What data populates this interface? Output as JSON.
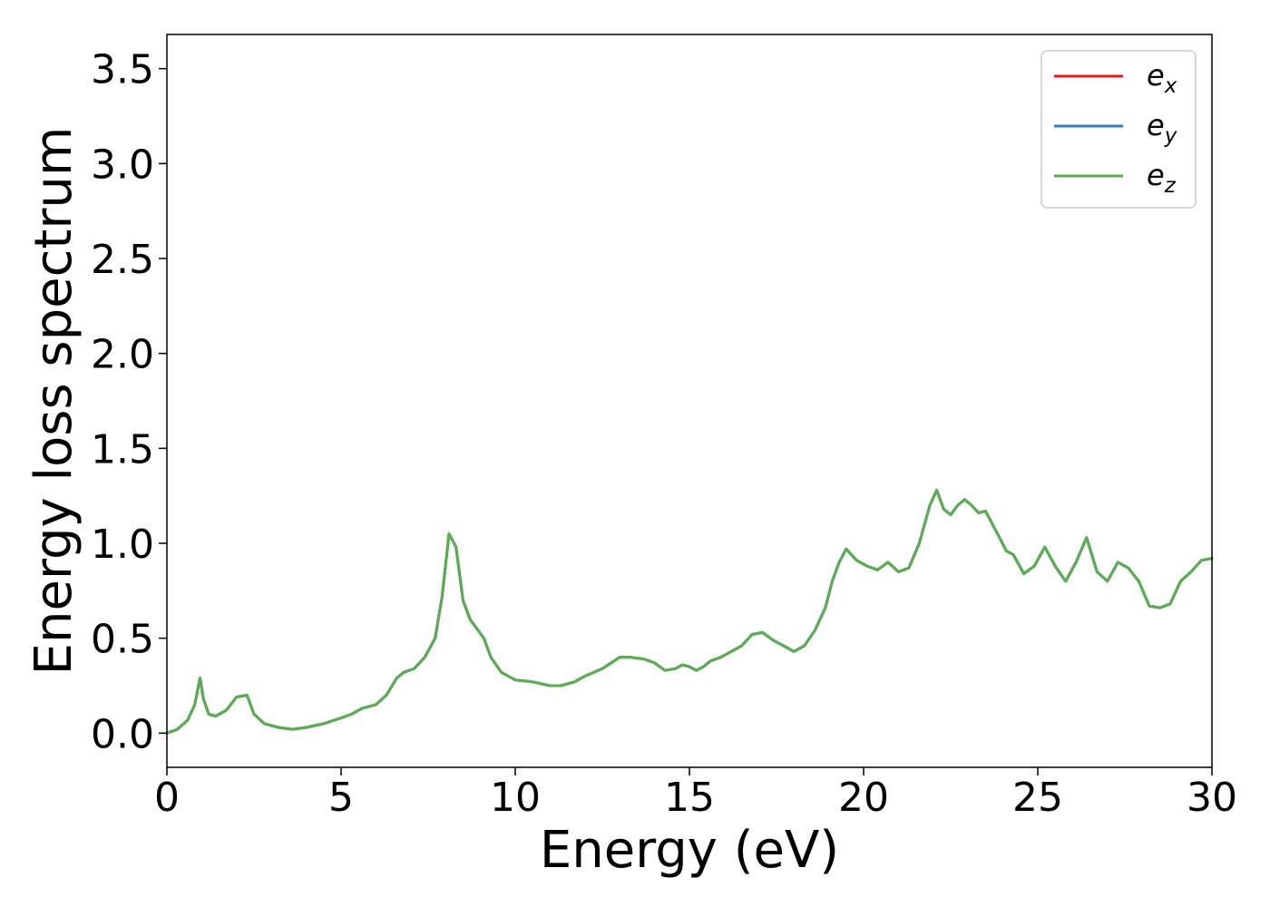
{
  "chart_data": {
    "type": "line",
    "title": "",
    "xlabel": "Energy (eV)",
    "ylabel": "Energy loss spectrum",
    "xlim": [
      0,
      30
    ],
    "ylim": [
      -0.18,
      3.68
    ],
    "xticks": [
      0,
      5,
      10,
      15,
      20,
      25,
      30
    ],
    "xtick_labels": [
      "0",
      "5",
      "10",
      "15",
      "20",
      "25",
      "30"
    ],
    "yticks": [
      0.0,
      0.5,
      1.0,
      1.5,
      2.0,
      2.5,
      3.0,
      3.5
    ],
    "ytick_labels": [
      "0.0",
      "0.5",
      "1.0",
      "1.5",
      "2.0",
      "2.5",
      "3.0",
      "3.5"
    ],
    "grid": false,
    "legend_position": "top-right",
    "x": [
      0,
      0.3,
      0.6,
      0.8,
      0.95,
      1.05,
      1.2,
      1.4,
      1.7,
      2.0,
      2.3,
      2.5,
      2.8,
      3.2,
      3.6,
      4.0,
      4.5,
      5.0,
      5.3,
      5.6,
      6.0,
      6.3,
      6.6,
      6.8,
      7.1,
      7.4,
      7.7,
      7.9,
      8.1,
      8.3,
      8.5,
      8.7,
      8.9,
      9.1,
      9.3,
      9.6,
      10.0,
      10.5,
      11.0,
      11.3,
      11.7,
      12.0,
      12.5,
      13.0,
      13.3,
      13.7,
      14.0,
      14.3,
      14.6,
      14.8,
      15.0,
      15.2,
      15.4,
      15.6,
      15.9,
      16.2,
      16.5,
      16.8,
      17.1,
      17.4,
      17.7,
      18.0,
      18.3,
      18.6,
      18.9,
      19.1,
      19.3,
      19.5,
      19.8,
      20.1,
      20.4,
      20.7,
      21.0,
      21.3,
      21.6,
      21.9,
      22.1,
      22.3,
      22.5,
      22.7,
      22.9,
      23.1,
      23.3,
      23.5,
      23.7,
      23.9,
      24.1,
      24.3,
      24.6,
      24.9,
      25.2,
      25.5,
      25.8,
      26.1,
      26.4,
      26.7,
      27.0,
      27.3,
      27.6,
      27.9,
      28.2,
      28.5,
      28.8,
      29.1,
      29.4,
      29.7,
      30.0
    ],
    "series": [
      {
        "name": "e_x",
        "label_base": "e",
        "label_sub": "x",
        "color": "#e41a1c",
        "values": [
          0.0,
          0.02,
          0.07,
          0.15,
          0.29,
          0.18,
          0.1,
          0.09,
          0.12,
          0.19,
          0.2,
          0.1,
          0.05,
          0.03,
          0.02,
          0.03,
          0.05,
          0.08,
          0.1,
          0.13,
          0.15,
          0.2,
          0.29,
          0.32,
          0.34,
          0.4,
          0.5,
          0.72,
          1.05,
          0.98,
          0.7,
          0.6,
          0.55,
          0.5,
          0.4,
          0.32,
          0.28,
          0.27,
          0.25,
          0.25,
          0.27,
          0.3,
          0.34,
          0.4,
          0.4,
          0.39,
          0.37,
          0.33,
          0.34,
          0.36,
          0.35,
          0.33,
          0.35,
          0.38,
          0.4,
          0.43,
          0.46,
          0.52,
          0.53,
          0.49,
          0.46,
          0.43,
          0.46,
          0.54,
          0.66,
          0.8,
          0.9,
          0.97,
          0.91,
          0.88,
          0.86,
          0.9,
          0.85,
          0.87,
          1.0,
          1.2,
          1.28,
          1.18,
          1.15,
          1.2,
          1.23,
          1.2,
          1.16,
          1.17,
          1.1,
          1.03,
          0.96,
          0.94,
          0.84,
          0.88,
          0.98,
          0.88,
          0.8,
          0.9,
          1.03,
          0.85,
          0.8,
          0.9,
          0.87,
          0.8,
          0.67,
          0.66,
          0.68,
          0.8,
          0.85,
          0.91,
          0.92
        ]
      },
      {
        "name": "e_y",
        "label_base": "e",
        "label_sub": "y",
        "color": "#377eb8",
        "values": [
          0.0,
          0.02,
          0.07,
          0.15,
          0.29,
          0.18,
          0.1,
          0.09,
          0.12,
          0.19,
          0.2,
          0.1,
          0.05,
          0.03,
          0.02,
          0.03,
          0.05,
          0.08,
          0.1,
          0.13,
          0.15,
          0.2,
          0.29,
          0.32,
          0.34,
          0.4,
          0.5,
          0.72,
          1.05,
          0.98,
          0.7,
          0.6,
          0.55,
          0.5,
          0.4,
          0.32,
          0.28,
          0.27,
          0.25,
          0.25,
          0.27,
          0.3,
          0.34,
          0.4,
          0.4,
          0.39,
          0.37,
          0.33,
          0.34,
          0.36,
          0.35,
          0.33,
          0.35,
          0.38,
          0.4,
          0.43,
          0.46,
          0.52,
          0.53,
          0.49,
          0.46,
          0.43,
          0.46,
          0.54,
          0.66,
          0.8,
          0.9,
          0.97,
          0.91,
          0.88,
          0.86,
          0.9,
          0.85,
          0.87,
          1.0,
          1.2,
          1.28,
          1.18,
          1.15,
          1.2,
          1.23,
          1.2,
          1.16,
          1.17,
          1.1,
          1.03,
          0.96,
          0.94,
          0.84,
          0.88,
          0.98,
          0.88,
          0.8,
          0.9,
          1.03,
          0.85,
          0.8,
          0.9,
          0.87,
          0.8,
          0.67,
          0.66,
          0.68,
          0.8,
          0.85,
          0.91,
          0.92
        ]
      },
      {
        "name": "e_z",
        "label_base": "e",
        "label_sub": "z",
        "color": "#5aae52",
        "values": [
          0.0,
          0.02,
          0.07,
          0.15,
          0.29,
          0.18,
          0.1,
          0.09,
          0.12,
          0.19,
          0.2,
          0.1,
          0.05,
          0.03,
          0.02,
          0.03,
          0.05,
          0.08,
          0.1,
          0.13,
          0.15,
          0.2,
          0.29,
          0.32,
          0.34,
          0.4,
          0.5,
          0.72,
          1.05,
          0.98,
          0.7,
          0.6,
          0.55,
          0.5,
          0.4,
          0.32,
          0.28,
          0.27,
          0.25,
          0.25,
          0.27,
          0.3,
          0.34,
          0.4,
          0.4,
          0.39,
          0.37,
          0.33,
          0.34,
          0.36,
          0.35,
          0.33,
          0.35,
          0.38,
          0.4,
          0.43,
          0.46,
          0.52,
          0.53,
          0.49,
          0.46,
          0.43,
          0.46,
          0.54,
          0.66,
          0.8,
          0.9,
          0.97,
          0.91,
          0.88,
          0.86,
          0.9,
          0.85,
          0.87,
          1.0,
          1.2,
          1.28,
          1.18,
          1.15,
          1.2,
          1.23,
          1.2,
          1.16,
          1.17,
          1.1,
          1.03,
          0.96,
          0.94,
          0.84,
          0.88,
          0.98,
          0.88,
          0.8,
          0.9,
          1.03,
          0.85,
          0.8,
          0.9,
          0.87,
          0.8,
          0.67,
          0.66,
          0.68,
          0.8,
          0.85,
          0.91,
          0.92
        ]
      }
    ]
  }
}
